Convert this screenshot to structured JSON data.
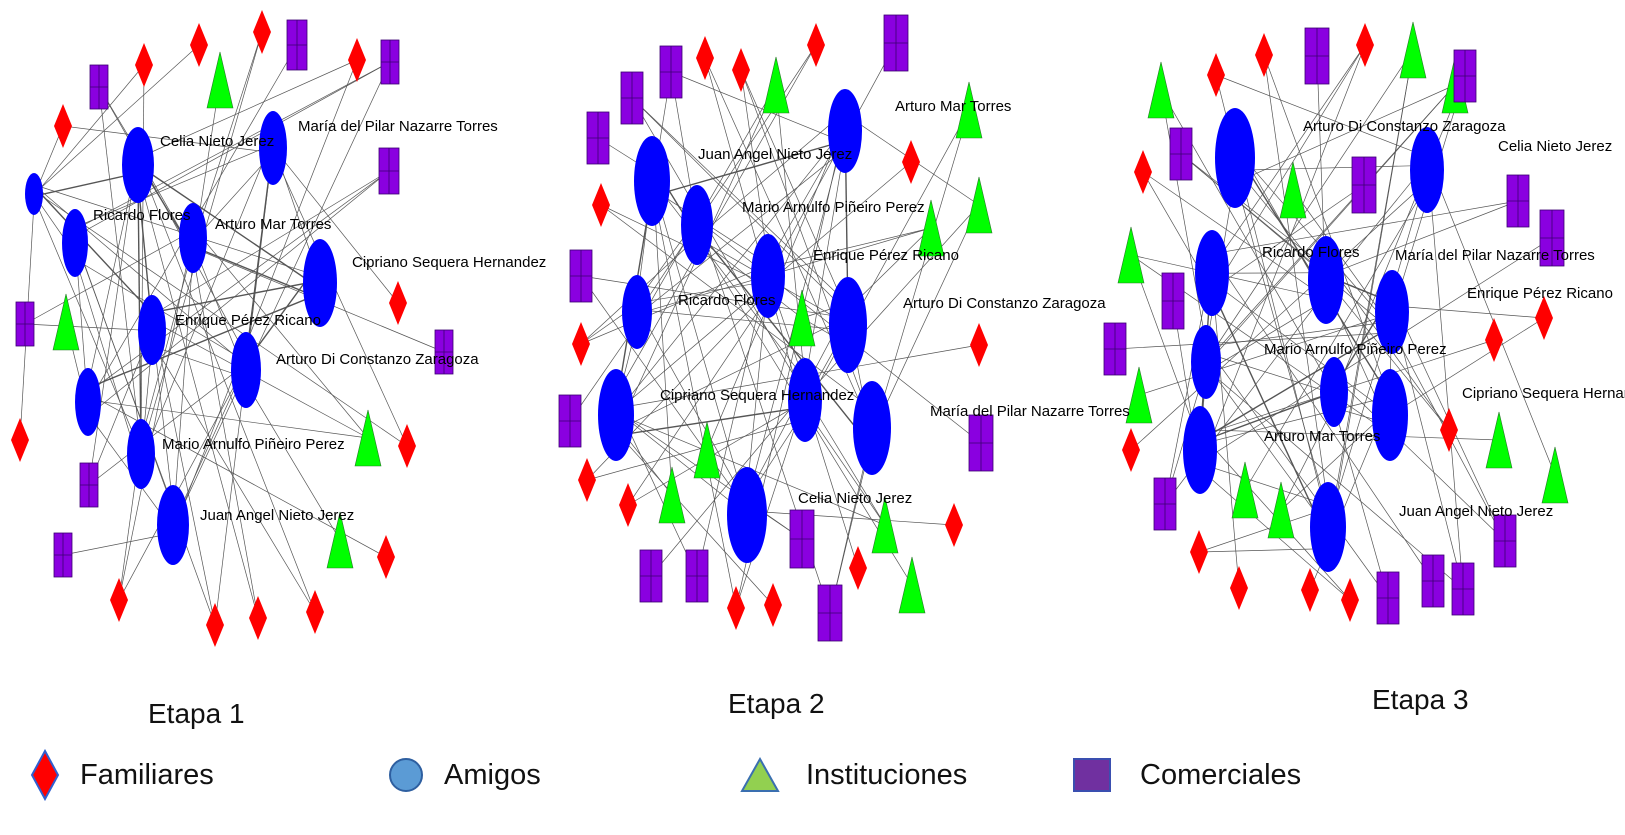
{
  "colors": {
    "familiares": "#ff0000",
    "amigos": "#0000ff",
    "instituciones": "#00ff00",
    "comerciales": "#8a00e0",
    "edge": "#555555",
    "legend_familiares_fill": "#ff0000",
    "legend_familiares_stroke": "#2f5fd0",
    "legend_amigos_fill": "#5b9bd5",
    "legend_amigos_stroke": "#2e5fa0",
    "legend_instituciones_fill": "#92d050",
    "legend_instituciones_stroke": "#3a6fb0",
    "legend_comerciales_fill": "#7030a0",
    "legend_comerciales_stroke": "#3a4fb0"
  },
  "stages": [
    {
      "caption": "Etapa 1",
      "labels": [
        "Celia Nieto Jerez",
        "María del Pilar Nazarre Torres",
        "Ricardo Flores",
        "Arturo Mar Torres",
        "Cipriano Sequera Hernandez",
        "Enrique Pérez Ricano",
        "Arturo Di Constanzo Zaragoza",
        "Mario Arnulfo Piñeiro Perez",
        "Juan Angel Nieto Jerez"
      ]
    },
    {
      "caption": "Etapa 2",
      "labels": [
        "Arturo Mar Torres",
        "Juan Angel Nieto Jerez",
        "Mario Arnulfo Piñeiro Perez",
        "Enrique Pérez Ricano",
        "Ricardo Flores",
        "Arturo Di Constanzo Zaragoza",
        "Cipriano Sequera Hernandez",
        "María del Pilar Nazarre Torres",
        "Celia Nieto Jerez"
      ]
    },
    {
      "caption": "Etapa 3",
      "labels": [
        "Arturo Di Constanzo Zaragoza",
        "Celia Nieto Jerez",
        "Ricardo Flores",
        "María del Pilar Nazarre Torres",
        "Enrique Pérez Ricano",
        "Mario Arnulfo Piñeiro Perez",
        "Cipriano Sequera Hernandez",
        "Arturo Mar Torres",
        "Juan Angel Nieto Jerez"
      ]
    }
  ],
  "legend": {
    "familiares": "Familiares",
    "amigos": "Amigos",
    "instituciones": "Instituciones",
    "comerciales": "Comerciales"
  }
}
